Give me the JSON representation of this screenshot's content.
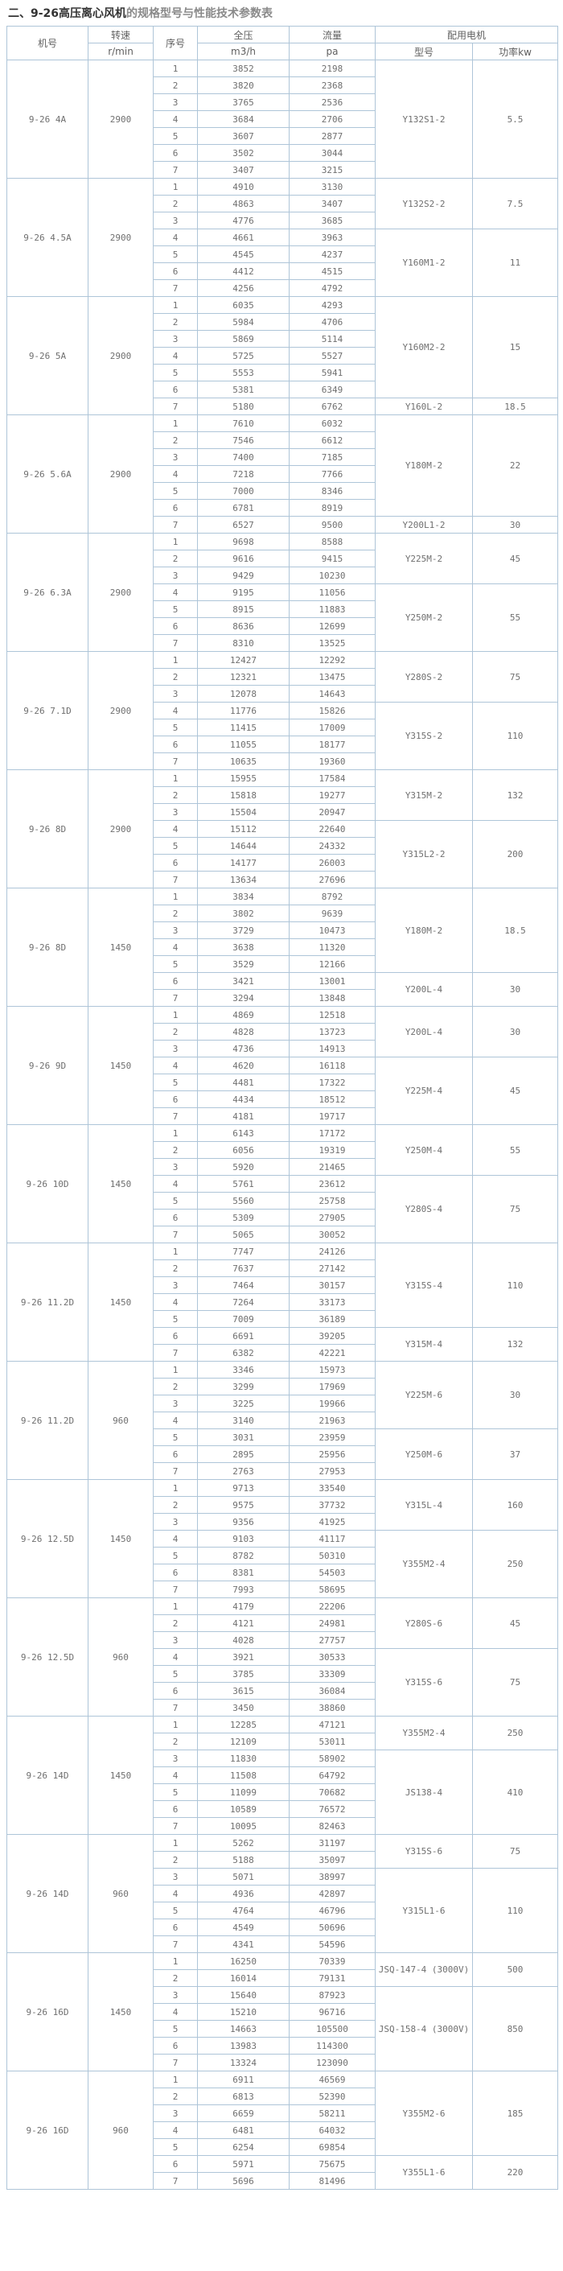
{
  "page_title": {
    "prefix": "二、9-26高压离心风机",
    "suffix": "的规格型号与性能技术参数表"
  },
  "colors": {
    "border": "#aec5d8",
    "text": "#6f6f6f",
    "title": "#333333",
    "title_suffix": "#8a8a8a"
  },
  "table": {
    "headers": {
      "fan_no": "机号",
      "speed": "转速",
      "speed_unit": "r/min",
      "seq": "序号",
      "pressure": "全压",
      "pressure_unit": "m3/h",
      "flow": "流量",
      "flow_unit": "pa",
      "motor_group": "配用电机",
      "motor_model": "型号",
      "motor_power": "功率kw"
    },
    "groups": [
      {
        "fan_no": "9-26 4A",
        "speed": "2900",
        "rows": [
          [
            "1",
            "3852",
            "2198"
          ],
          [
            "2",
            "3820",
            "2368"
          ],
          [
            "3",
            "3765",
            "2536"
          ],
          [
            "4",
            "3684",
            "2706"
          ],
          [
            "5",
            "3607",
            "2877"
          ],
          [
            "6",
            "3502",
            "3044"
          ],
          [
            "7",
            "3407",
            "3215"
          ]
        ],
        "motors": [
          {
            "model": "Y132S1-2",
            "power": "5.5",
            "span": 7
          }
        ]
      },
      {
        "fan_no": "9-26 4.5A",
        "speed": "2900",
        "rows": [
          [
            "1",
            "4910",
            "3130"
          ],
          [
            "2",
            "4863",
            "3407"
          ],
          [
            "3",
            "4776",
            "3685"
          ],
          [
            "4",
            "4661",
            "3963"
          ],
          [
            "5",
            "4545",
            "4237"
          ],
          [
            "6",
            "4412",
            "4515"
          ],
          [
            "7",
            "4256",
            "4792"
          ]
        ],
        "motors": [
          {
            "model": "Y132S2-2",
            "power": "7.5",
            "span": 3
          },
          {
            "model": "Y160M1-2",
            "power": "11",
            "span": 4
          }
        ]
      },
      {
        "fan_no": "9-26 5A",
        "speed": "2900",
        "rows": [
          [
            "1",
            "6035",
            "4293"
          ],
          [
            "2",
            "5984",
            "4706"
          ],
          [
            "3",
            "5869",
            "5114"
          ],
          [
            "4",
            "5725",
            "5527"
          ],
          [
            "5",
            "5553",
            "5941"
          ],
          [
            "6",
            "5381",
            "6349"
          ],
          [
            "7",
            "5180",
            "6762"
          ]
        ],
        "motors": [
          {
            "model": "Y160M2-2",
            "power": "15",
            "span": 6
          },
          {
            "model": "Y160L-2",
            "power": "18.5",
            "span": 1
          }
        ]
      },
      {
        "fan_no": "9-26 5.6A",
        "speed": "2900",
        "rows": [
          [
            "1",
            "7610",
            "6032"
          ],
          [
            "2",
            "7546",
            "6612"
          ],
          [
            "3",
            "7400",
            "7185"
          ],
          [
            "4",
            "7218",
            "7766"
          ],
          [
            "5",
            "7000",
            "8346"
          ],
          [
            "6",
            "6781",
            "8919"
          ],
          [
            "7",
            "6527",
            "9500"
          ]
        ],
        "motors": [
          {
            "model": "Y180M-2",
            "power": "22",
            "span": 6
          },
          {
            "model": "Y200L1-2",
            "power": "30",
            "span": 1
          }
        ]
      },
      {
        "fan_no": "9-26 6.3A",
        "speed": "2900",
        "rows": [
          [
            "1",
            "9698",
            "8588"
          ],
          [
            "2",
            "9616",
            "9415"
          ],
          [
            "3",
            "9429",
            "10230"
          ],
          [
            "4",
            "9195",
            "11056"
          ],
          [
            "5",
            "8915",
            "11883"
          ],
          [
            "6",
            "8636",
            "12699"
          ],
          [
            "7",
            "8310",
            "13525"
          ]
        ],
        "motors": [
          {
            "model": "Y225M-2",
            "power": "45",
            "span": 3
          },
          {
            "model": "Y250M-2",
            "power": "55",
            "span": 4
          }
        ]
      },
      {
        "fan_no": "9-26 7.1D",
        "speed": "2900",
        "rows": [
          [
            "1",
            "12427",
            "12292"
          ],
          [
            "2",
            "12321",
            "13475"
          ],
          [
            "3",
            "12078",
            "14643"
          ],
          [
            "4",
            "11776",
            "15826"
          ],
          [
            "5",
            "11415",
            "17009"
          ],
          [
            "6",
            "11055",
            "18177"
          ],
          [
            "7",
            "10635",
            "19360"
          ]
        ],
        "motors": [
          {
            "model": "Y280S-2",
            "power": "75",
            "span": 3
          },
          {
            "model": "Y315S-2",
            "power": "110",
            "span": 4
          }
        ]
      },
      {
        "fan_no": "9-26 8D",
        "speed": "2900",
        "rows": [
          [
            "1",
            "15955",
            "17584"
          ],
          [
            "2",
            "15818",
            "19277"
          ],
          [
            "3",
            "15504",
            "20947"
          ],
          [
            "4",
            "15112",
            "22640"
          ],
          [
            "5",
            "14644",
            "24332"
          ],
          [
            "6",
            "14177",
            "26003"
          ],
          [
            "7",
            "13634",
            "27696"
          ]
        ],
        "motors": [
          {
            "model": "Y315M-2",
            "power": "132",
            "span": 3
          },
          {
            "model": "Y315L2-2",
            "power": "200",
            "span": 4
          }
        ]
      },
      {
        "fan_no": "9-26 8D",
        "speed": "1450",
        "rows": [
          [
            "1",
            "3834",
            "8792"
          ],
          [
            "2",
            "3802",
            "9639"
          ],
          [
            "3",
            "3729",
            "10473"
          ],
          [
            "4",
            "3638",
            "11320"
          ],
          [
            "5",
            "3529",
            "12166"
          ],
          [
            "6",
            "3421",
            "13001"
          ],
          [
            "7",
            "3294",
            "13848"
          ]
        ],
        "motors": [
          {
            "model": "Y180M-2",
            "power": "18.5",
            "span": 5
          },
          {
            "model": "Y200L-4",
            "power": "30",
            "span": 2
          }
        ]
      },
      {
        "fan_no": "9-26 9D",
        "speed": "1450",
        "rows": [
          [
            "1",
            "4869",
            "12518"
          ],
          [
            "2",
            "4828",
            "13723"
          ],
          [
            "3",
            "4736",
            "14913"
          ],
          [
            "4",
            "4620",
            "16118"
          ],
          [
            "5",
            "4481",
            "17322"
          ],
          [
            "6",
            "4434",
            "18512"
          ],
          [
            "7",
            "4181",
            "19717"
          ]
        ],
        "motors": [
          {
            "model": "Y200L-4",
            "power": "30",
            "span": 3
          },
          {
            "model": "Y225M-4",
            "power": "45",
            "span": 4
          }
        ]
      },
      {
        "fan_no": "9-26 10D",
        "speed": "1450",
        "rows": [
          [
            "1",
            "6143",
            "17172"
          ],
          [
            "2",
            "6056",
            "19319"
          ],
          [
            "3",
            "5920",
            "21465"
          ],
          [
            "4",
            "5761",
            "23612"
          ],
          [
            "5",
            "5560",
            "25758"
          ],
          [
            "6",
            "5309",
            "27905"
          ],
          [
            "7",
            "5065",
            "30052"
          ]
        ],
        "motors": [
          {
            "model": "Y250M-4",
            "power": "55",
            "span": 3
          },
          {
            "model": "Y280S-4",
            "power": "75",
            "span": 4
          }
        ]
      },
      {
        "fan_no": "9-26 11.2D",
        "speed": "1450",
        "rows": [
          [
            "1",
            "7747",
            "24126"
          ],
          [
            "2",
            "7637",
            "27142"
          ],
          [
            "3",
            "7464",
            "30157"
          ],
          [
            "4",
            "7264",
            "33173"
          ],
          [
            "5",
            "7009",
            "36189"
          ],
          [
            "6",
            "6691",
            "39205"
          ],
          [
            "7",
            "6382",
            "42221"
          ]
        ],
        "motors": [
          {
            "model": "Y315S-4",
            "power": "110",
            "span": 5
          },
          {
            "model": "Y315M-4",
            "power": "132",
            "span": 2
          }
        ]
      },
      {
        "fan_no": "9-26 11.2D",
        "speed": "960",
        "rows": [
          [
            "1",
            "3346",
            "15973"
          ],
          [
            "2",
            "3299",
            "17969"
          ],
          [
            "3",
            "3225",
            "19966"
          ],
          [
            "4",
            "3140",
            "21963"
          ],
          [
            "5",
            "3031",
            "23959"
          ],
          [
            "6",
            "2895",
            "25956"
          ],
          [
            "7",
            "2763",
            "27953"
          ]
        ],
        "motors": [
          {
            "model": "Y225M-6",
            "power": "30",
            "span": 4
          },
          {
            "model": "Y250M-6",
            "power": "37",
            "span": 3
          }
        ]
      },
      {
        "fan_no": "9-26 12.5D",
        "speed": "1450",
        "rows": [
          [
            "1",
            "9713",
            "33540"
          ],
          [
            "2",
            "9575",
            "37732"
          ],
          [
            "3",
            "9356",
            "41925"
          ],
          [
            "4",
            "9103",
            "41117"
          ],
          [
            "5",
            "8782",
            "50310"
          ],
          [
            "6",
            "8381",
            "54503"
          ],
          [
            "7",
            "7993",
            "58695"
          ]
        ],
        "motors": [
          {
            "model": "Y315L-4",
            "power": "160",
            "span": 3
          },
          {
            "model": "Y355M2-4",
            "power": "250",
            "span": 4
          }
        ]
      },
      {
        "fan_no": "9-26 12.5D",
        "speed": "960",
        "rows": [
          [
            "1",
            "4179",
            "22206"
          ],
          [
            "2",
            "4121",
            "24981"
          ],
          [
            "3",
            "4028",
            "27757"
          ],
          [
            "4",
            "3921",
            "30533"
          ],
          [
            "5",
            "3785",
            "33309"
          ],
          [
            "6",
            "3615",
            "36084"
          ],
          [
            "7",
            "3450",
            "38860"
          ]
        ],
        "motors": [
          {
            "model": "Y280S-6",
            "power": "45",
            "span": 3
          },
          {
            "model": "Y315S-6",
            "power": "75",
            "span": 4
          }
        ]
      },
      {
        "fan_no": "9-26 14D",
        "speed": "1450",
        "rows": [
          [
            "1",
            "12285",
            "47121"
          ],
          [
            "2",
            "12109",
            "53011"
          ],
          [
            "3",
            "11830",
            "58902"
          ],
          [
            "4",
            "11508",
            "64792"
          ],
          [
            "5",
            "11099",
            "70682"
          ],
          [
            "6",
            "10589",
            "76572"
          ],
          [
            "7",
            "10095",
            "82463"
          ]
        ],
        "motors": [
          {
            "model": "Y355M2-4",
            "power": "250",
            "span": 2
          },
          {
            "model": "JS138-4",
            "power": "410",
            "span": 5
          }
        ]
      },
      {
        "fan_no": "9-26 14D",
        "speed": "960",
        "rows": [
          [
            "1",
            "5262",
            "31197"
          ],
          [
            "2",
            "5188",
            "35097"
          ],
          [
            "3",
            "5071",
            "38997"
          ],
          [
            "4",
            "4936",
            "42897"
          ],
          [
            "5",
            "4764",
            "46796"
          ],
          [
            "6",
            "4549",
            "50696"
          ],
          [
            "7",
            "4341",
            "54596"
          ]
        ],
        "motors": [
          {
            "model": "Y315S-6",
            "power": "75",
            "span": 2
          },
          {
            "model": "Y315L1-6",
            "power": "110",
            "span": 5
          }
        ]
      },
      {
        "fan_no": "9-26 16D",
        "speed": "1450",
        "rows": [
          [
            "1",
            "16250",
            "70339"
          ],
          [
            "2",
            "16014",
            "79131"
          ],
          [
            "3",
            "15640",
            "87923"
          ],
          [
            "4",
            "15210",
            "96716"
          ],
          [
            "5",
            "14663",
            "105500"
          ],
          [
            "6",
            "13983",
            "114300"
          ],
          [
            "7",
            "13324",
            "123090"
          ]
        ],
        "motors": [
          {
            "model": "JSQ-147-4 (3000V)",
            "power": "500",
            "span": 2
          },
          {
            "model": "JSQ-158-4 (3000V)",
            "power": "850",
            "span": 5
          }
        ]
      },
      {
        "fan_no": "9-26 16D",
        "speed": "960",
        "rows": [
          [
            "1",
            "6911",
            "46569"
          ],
          [
            "2",
            "6813",
            "52390"
          ],
          [
            "3",
            "6659",
            "58211"
          ],
          [
            "4",
            "6481",
            "64032"
          ],
          [
            "5",
            "6254",
            "69854"
          ],
          [
            "6",
            "5971",
            "75675"
          ],
          [
            "7",
            "5696",
            "81496"
          ]
        ],
        "motors": [
          {
            "model": "Y355M2-6",
            "power": "185",
            "span": 5
          },
          {
            "model": "Y355L1-6",
            "power": "220",
            "span": 2
          }
        ]
      }
    ]
  }
}
